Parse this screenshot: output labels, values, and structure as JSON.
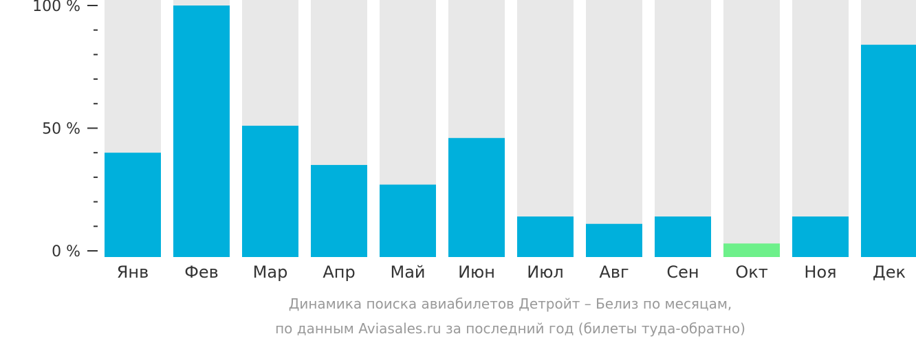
{
  "chart_data": {
    "type": "bar",
    "categories": [
      "Янв",
      "Фев",
      "Мар",
      "Апр",
      "Май",
      "Июн",
      "Июл",
      "Авг",
      "Сен",
      "Окт",
      "Ноя",
      "Дек"
    ],
    "values": [
      40,
      100,
      51,
      35,
      27,
      46,
      14,
      11,
      14,
      3,
      14,
      84
    ],
    "ylim": [
      0,
      100
    ],
    "yticks": [
      {
        "value": 0,
        "label": "0 %"
      },
      {
        "value": 50,
        "label": "50 %"
      },
      {
        "value": 100,
        "label": "100 %"
      }
    ],
    "minor_tick_step": 10,
    "title": "",
    "xlabel": "",
    "ylabel": "",
    "grid": false,
    "legend": "none",
    "colors": {
      "bar": "#00b0dc",
      "lowest_bar": "#6df08a",
      "track": "#e8e8e8",
      "axis": "#333333"
    }
  },
  "caption": {
    "line1": "Динамика поиска авиабилетов Детройт – Белиз по месяцам,",
    "line2": "по данным Aviasales.ru за последний год (билеты туда-обратно)"
  }
}
